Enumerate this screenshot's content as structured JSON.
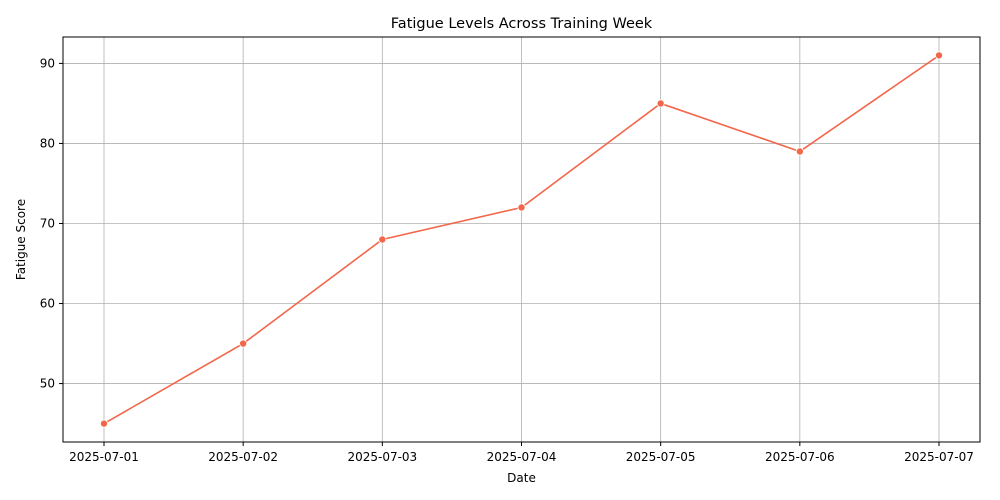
{
  "chart_data": {
    "type": "line",
    "title": "Fatigue Levels Across Training Week",
    "xlabel": "Date",
    "ylabel": "Fatigue Score",
    "x": [
      "2025-07-01",
      "2025-07-02",
      "2025-07-03",
      "2025-07-04",
      "2025-07-05",
      "2025-07-06",
      "2025-07-07"
    ],
    "series": [
      {
        "values": [
          45,
          55,
          68,
          72,
          85,
          79,
          91
        ]
      }
    ],
    "ylim": [
      42.7,
      93.3
    ],
    "yticks": [
      "50",
      "60",
      "70",
      "80",
      "90"
    ],
    "grid": true,
    "legend": "none",
    "colors": {
      "line": "#f2674a",
      "grid": "#b0b0b0",
      "axis": "#000000"
    }
  }
}
